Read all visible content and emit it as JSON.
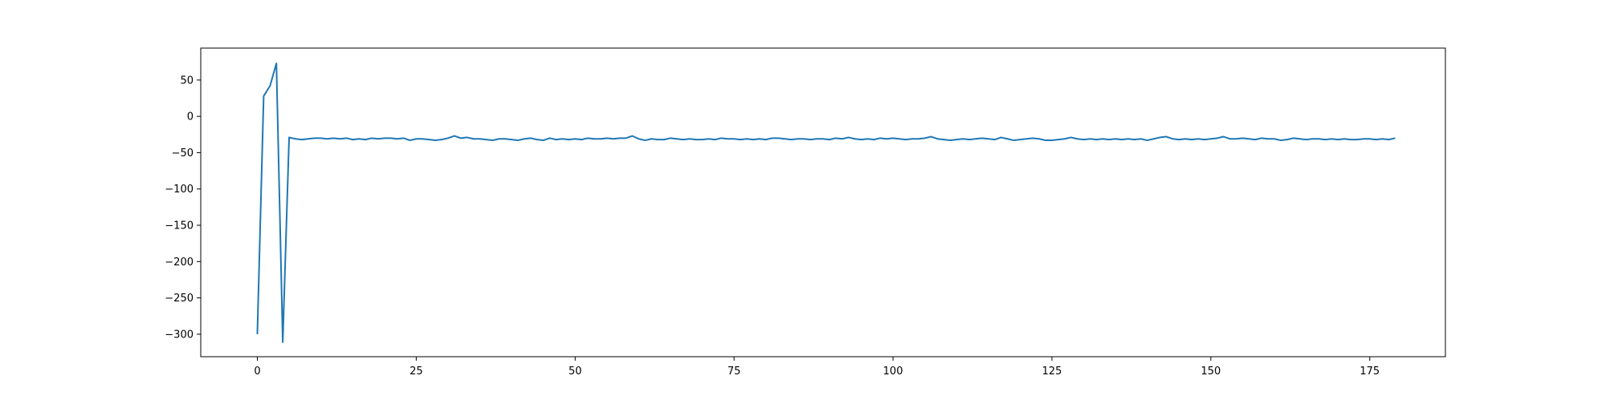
{
  "chart_data": {
    "type": "line",
    "title": "",
    "xlabel": "",
    "ylabel": "",
    "xlim": [
      -8.9,
      186.9
    ],
    "ylim": [
      -331,
      94
    ],
    "grid": false,
    "legend": "none",
    "x_ticks": [
      0,
      25,
      50,
      75,
      100,
      125,
      150,
      175
    ],
    "y_ticks": [
      50,
      0,
      -50,
      -100,
      -150,
      -200,
      -250,
      -300
    ],
    "x_tick_labels": [
      "0",
      "25",
      "50",
      "75",
      "100",
      "125",
      "150",
      "175"
    ],
    "y_tick_labels": [
      "50",
      "0",
      "−50",
      "−100",
      "−150",
      "−200",
      "−250",
      "−300"
    ],
    "series": [
      {
        "color": "#1f77b4",
        "x_start": 0,
        "x_step": 1,
        "values": [
          -300,
          28,
          42,
          73,
          -311,
          -29,
          -31,
          -32,
          -31,
          -30,
          -30,
          -31,
          -30,
          -31,
          -30,
          -32,
          -31,
          -32,
          -30,
          -31,
          -30,
          -30,
          -31,
          -30,
          -33,
          -31,
          -31,
          -32,
          -33,
          -32,
          -30,
          -27,
          -30,
          -29,
          -31,
          -31,
          -32,
          -33,
          -31,
          -31,
          -32,
          -33,
          -31,
          -30,
          -32,
          -33,
          -30,
          -32,
          -31,
          -32,
          -31,
          -32,
          -30,
          -31,
          -31,
          -30,
          -31,
          -30,
          -30,
          -27,
          -31,
          -33,
          -31,
          -32,
          -32,
          -30,
          -31,
          -32,
          -31,
          -32,
          -32,
          -31,
          -32,
          -30,
          -31,
          -31,
          -32,
          -31,
          -32,
          -31,
          -32,
          -30,
          -30,
          -31,
          -32,
          -31,
          -31,
          -32,
          -31,
          -31,
          -32,
          -30,
          -31,
          -29,
          -31,
          -32,
          -31,
          -32,
          -30,
          -31,
          -30,
          -31,
          -32,
          -31,
          -31,
          -30,
          -28,
          -31,
          -32,
          -33,
          -32,
          -31,
          -32,
          -31,
          -30,
          -31,
          -32,
          -29,
          -31,
          -33,
          -32,
          -31,
          -30,
          -31,
          -33,
          -33,
          -32,
          -31,
          -29,
          -31,
          -32,
          -31,
          -32,
          -31,
          -32,
          -31,
          -32,
          -31,
          -32,
          -31,
          -33,
          -31,
          -29,
          -28,
          -31,
          -32,
          -31,
          -32,
          -31,
          -32,
          -31,
          -30,
          -28,
          -31,
          -31,
          -30,
          -31,
          -32,
          -30,
          -31,
          -31,
          -33,
          -32,
          -30,
          -31,
          -32,
          -31,
          -31,
          -32,
          -31,
          -32,
          -31,
          -32,
          -32,
          -31,
          -31,
          -32,
          -31,
          -32,
          -30
        ]
      }
    ]
  }
}
